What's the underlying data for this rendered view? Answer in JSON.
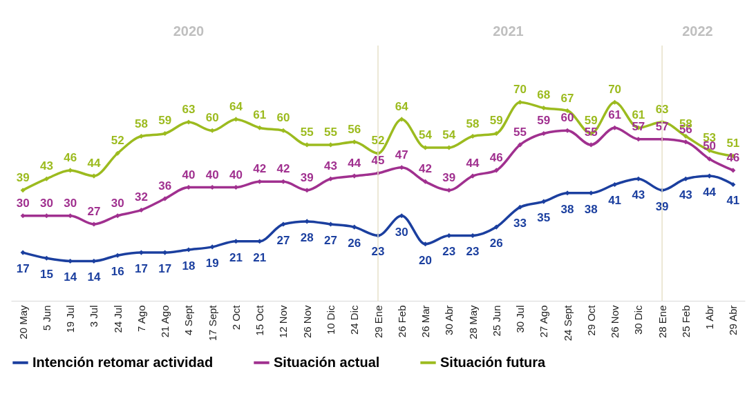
{
  "chart_data": {
    "type": "line",
    "categories": [
      "20 May",
      "5 Jun",
      "19 Jul",
      "3 Jul",
      "24 Jul",
      "7 Ago",
      "21 Ago",
      "4 Sept",
      "17 Sept",
      "2 Oct",
      "15 Oct",
      "12 Nov",
      "26 Nov",
      "10 Dic",
      "24 Dic",
      "29 Ene",
      "26 Feb",
      "26 Mar",
      "30 Abr",
      "28 May",
      "25 Jun",
      "30 Jul",
      "27 Ago",
      "24 Sept",
      "29 Oct",
      "26 Nov",
      "30 Dic",
      "28 Ene",
      "25 Feb",
      "1 Abr",
      "29 Abr"
    ],
    "series": [
      {
        "name": "Intención retomar actividad",
        "color": "#1b3f9f",
        "values": [
          17,
          15,
          14,
          14,
          16,
          17,
          17,
          18,
          19,
          21,
          21,
          27,
          28,
          27,
          26,
          23,
          30,
          20,
          23,
          23,
          26,
          33,
          35,
          38,
          38,
          41,
          43,
          39,
          43,
          44,
          41
        ]
      },
      {
        "name": "Situación actual",
        "color": "#a0308f",
        "values": [
          30,
          30,
          30,
          27,
          30,
          32,
          36,
          40,
          40,
          40,
          42,
          42,
          39,
          43,
          44,
          45,
          47,
          42,
          39,
          44,
          46,
          55,
          59,
          60,
          55,
          61,
          57,
          57,
          56,
          50,
          46
        ]
      },
      {
        "name": "Situación futura",
        "color": "#9cbb1f",
        "values": [
          39,
          43,
          46,
          44,
          52,
          58,
          59,
          63,
          60,
          64,
          61,
          60,
          55,
          55,
          56,
          52,
          64,
          54,
          54,
          58,
          59,
          70,
          68,
          67,
          59,
          70,
          61,
          63,
          58,
          53,
          51
        ]
      }
    ],
    "ylim": [
      0,
      90
    ],
    "tick_labels": "x",
    "grid": false,
    "legend": "bottom",
    "marker": "diamond",
    "line_style": "solid",
    "data_labels": true,
    "ref_lines": [
      {
        "axis": "x",
        "value": "29 Ene",
        "color": "#e6e0c8"
      },
      {
        "axis": "x",
        "value": "28 Ene",
        "color": "#e6e0c8"
      }
    ],
    "annotations": [
      "2020",
      "2021",
      "2022"
    ]
  }
}
